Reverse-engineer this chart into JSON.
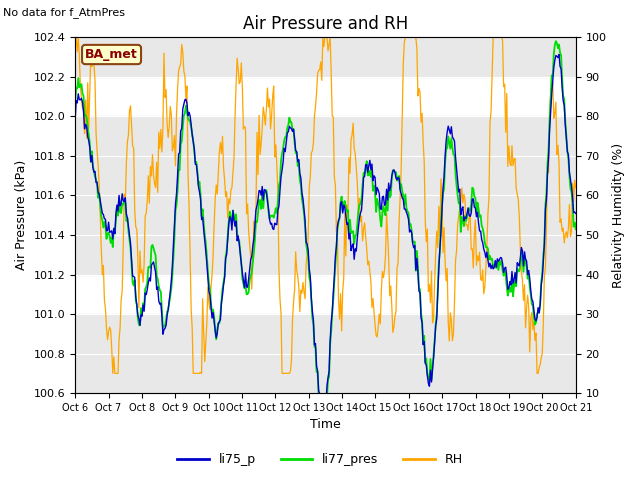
{
  "title": "Air Pressure and RH",
  "top_left_text": "No data for f_AtmPres",
  "ba_met_label": "BA_met",
  "xlabel": "Time",
  "ylabel_left": "Air Pressure (kPa)",
  "ylabel_right": "Relativity Humidity (%)",
  "ylim_left": [
    100.6,
    102.4
  ],
  "ylim_right": [
    10,
    100
  ],
  "x_tick_labels": [
    "Oct 6",
    "Oct 7",
    "Oct 8",
    "Oct 9",
    "Oct 10",
    "Oct 11",
    "Oct 12",
    "Oct 13",
    "Oct 14",
    "Oct 15",
    "Oct 16",
    "Oct 17",
    "Oct 18",
    "Oct 19",
    "Oct 20",
    "Oct 21"
  ],
  "background_color": "#ffffff",
  "shading_light": "#e8e8e8",
  "shading_dark": "#d0d0d0",
  "line_colors": {
    "li75_p": "#0000cd",
    "li77_pres": "#00dd00",
    "RH": "#ffa500"
  },
  "legend_labels": [
    "li75_p",
    "li77_pres",
    "RH"
  ],
  "title_fontsize": 12,
  "axis_fontsize": 9,
  "tick_fontsize": 8
}
